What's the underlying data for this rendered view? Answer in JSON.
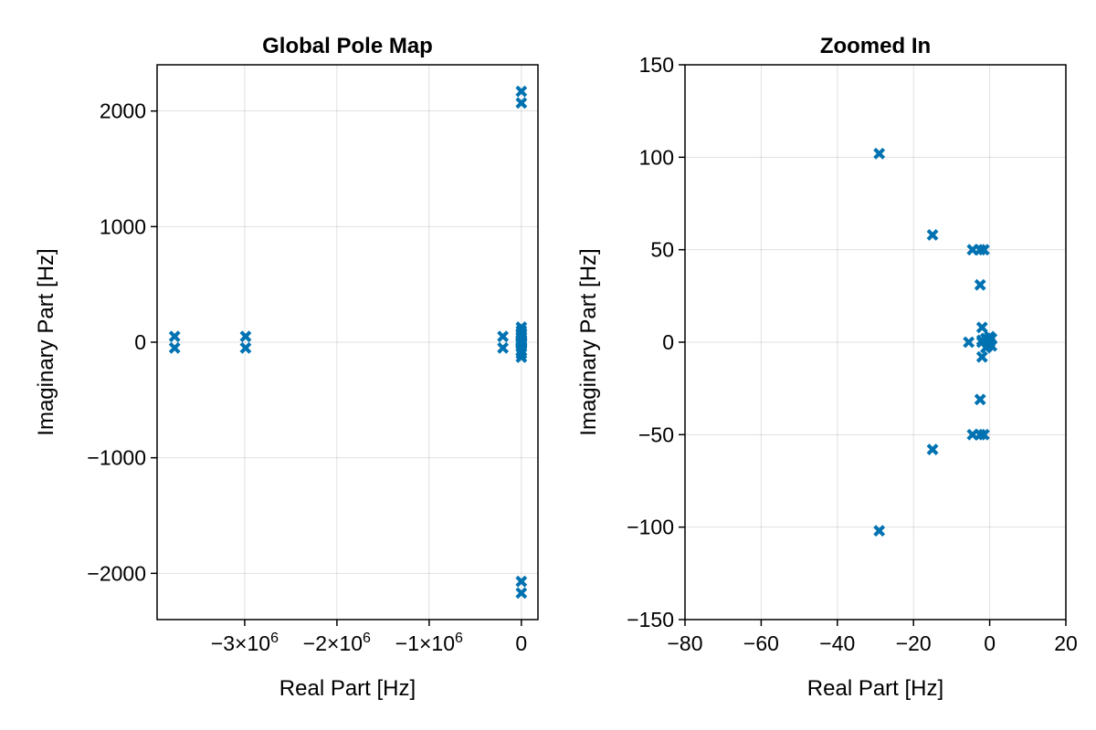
{
  "chart_data": [
    {
      "type": "scatter",
      "title": "Global Pole Map",
      "xlabel": "Real Part [Hz]",
      "ylabel": "Imaginary Part [Hz]",
      "xlim": [
        -3950000,
        180000
      ],
      "ylim": [
        -2400,
        2400
      ],
      "xticks": [
        -3000000,
        -2000000,
        -1000000,
        0
      ],
      "xtick_labels": [
        {
          "base": "−3×10",
          "exp": "6"
        },
        {
          "base": "−2×10",
          "exp": "6"
        },
        {
          "base": "−1×10",
          "exp": "6"
        },
        {
          "base": "0",
          "exp": ""
        }
      ],
      "yticks": [
        -2000,
        -1000,
        0,
        1000,
        2000
      ],
      "ytick_labels": [
        "−2000",
        "−1000",
        "0",
        "1000",
        "2000"
      ],
      "grid": true,
      "marker": "x",
      "color": "#0072B2",
      "series": [
        {
          "x": [
            -3760000,
            -3760000,
            -2990000,
            -2990000,
            -200000,
            -200000,
            -10,
            -10,
            -10,
            -10,
            -15,
            -15,
            -4,
            -4,
            -2,
            -2,
            -1,
            -1,
            -29,
            -29,
            -5,
            -3,
            -2,
            -1,
            0,
            0,
            0
          ],
          "y": [
            50,
            -50,
            50,
            -50,
            50,
            -50,
            2170,
            2070,
            -2070,
            -2170,
            130,
            -130,
            100,
            -100,
            80,
            -80,
            40,
            -40,
            20,
            -20,
            0,
            10,
            -10,
            60,
            5,
            -5,
            0
          ]
        }
      ]
    },
    {
      "type": "scatter",
      "title": "Zoomed In",
      "xlabel": "Real Part [Hz]",
      "ylabel": "Imaginary Part [Hz]",
      "xlim": [
        -80,
        20
      ],
      "ylim": [
        -150,
        150
      ],
      "xticks": [
        -80,
        -60,
        -40,
        -20,
        0,
        20
      ],
      "xtick_labels": [
        "−80",
        "−60",
        "−40",
        "−20",
        "0",
        "20"
      ],
      "yticks": [
        -150,
        -100,
        -50,
        0,
        50,
        100,
        150
      ],
      "ytick_labels": [
        "−150",
        "−100",
        "−50",
        "0",
        "50",
        "100",
        "150"
      ],
      "grid": true,
      "marker": "x",
      "color": "#0072B2",
      "series": [
        {
          "x": [
            -29,
            -29,
            -15,
            -15,
            -4.5,
            -4.5,
            -2.5,
            -2.5,
            -1.5,
            -1.5,
            -2.5,
            -2.5,
            -2,
            -2,
            -5.5,
            -2,
            -1,
            -0.5,
            0,
            0.5,
            0.5,
            0,
            -1,
            -2
          ],
          "y": [
            102,
            -102,
            58,
            -58,
            50,
            -50,
            50,
            -50,
            50,
            -50,
            31,
            -31,
            8,
            -8,
            0,
            0,
            2,
            -2,
            0,
            2,
            -2,
            3,
            -3,
            1
          ]
        }
      ]
    }
  ]
}
